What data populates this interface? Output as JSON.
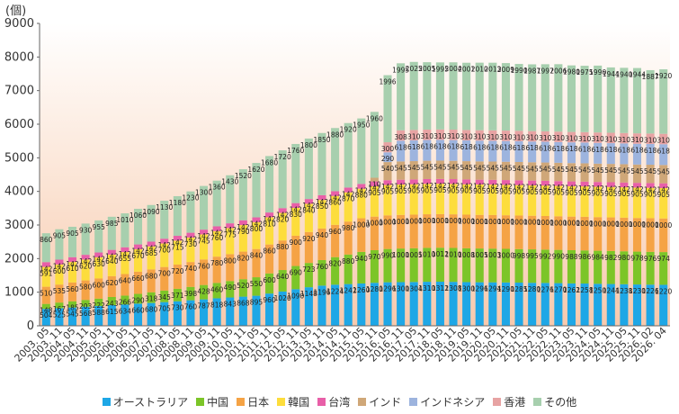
{
  "chart_data": {
    "type": "bar",
    "stacked": true,
    "ylabel": "(個)",
    "ylim": [
      0,
      9000
    ],
    "yticks": [
      0,
      1000,
      2000,
      3000,
      4000,
      5000,
      6000,
      7000,
      8000,
      9000
    ],
    "grid": false,
    "legend_position": "bottom",
    "categories": [
      "2003.05",
      "2003.11",
      "2004.05",
      "2004.11",
      "2005.05",
      "2005.11",
      "2006.05",
      "2006.11",
      "2007.05",
      "2007.11",
      "2008.05",
      "2008.11",
      "2009.05",
      "2009.11",
      "2010.05",
      "2010.11",
      "2011.05",
      "2011.11",
      "2012.05",
      "2012.11",
      "2013.05",
      "2013.11",
      "2014.05",
      "2014.11",
      "2015.05",
      "2015.11",
      "2016.05",
      "2016.11",
      "2017.05",
      "2017.11",
      "2018.05",
      "2018.11",
      "2019.05",
      "2019.11",
      "2020.05",
      "2020.11",
      "2021.05",
      "2021.11",
      "2022.05",
      "2022.11",
      "2023.05",
      "2023.11",
      "2024.05",
      "2024.11",
      "2025.05",
      "2025.11",
      "2026.02",
      "2026.04"
    ],
    "x_tick_labels": [
      "2003. 05",
      "2003. 11",
      "2004. 05",
      "2004. 11",
      "2005. 05",
      "2005. 11",
      "2006. 05",
      "2006. 11",
      "2007. 05",
      "2007. 11",
      "2008. 05",
      "2008. 11",
      "2009. 05",
      "2009. 11",
      "2010. 05",
      "2010. 11",
      "2011. 05",
      "2011. 11",
      "2012. 05",
      "2012. 11",
      "2013. 05",
      "2013. 11",
      "2014. 05",
      "2014. 11",
      "2015. 05",
      "2015. 11",
      "2016. 05",
      "2016. 11",
      "2017. 05",
      "2017. 11",
      "2018. 05",
      "2018. 11",
      "2019. 05",
      "2019. 11",
      "2020. 05",
      "2020. 11",
      "2021. 05",
      "2021. 11",
      "2022. 05",
      "2022. 11",
      "2023. 05",
      "2023. 11",
      "2024. 05",
      "2024. 11",
      "2025. 05",
      "2025. 11",
      "2026. 02",
      "2026. 04"
    ],
    "series": [
      {
        "name": "オーストラリア",
        "color": "#1ea7e6",
        "values": [
          504,
          525,
          545,
          568,
          588,
          615,
          634,
          660,
          680,
          705,
          730,
          760,
          787,
          818,
          843,
          868,
          895,
          960,
          1020,
          1090,
          1148,
          1196,
          1224,
          1242,
          1260,
          1280,
          1296,
          1300,
          1304,
          1310,
          1312,
          1308,
          1300,
          1296,
          1294,
          1290,
          1285,
          1280,
          1276,
          1270,
          1262,
          1258,
          1250,
          1244,
          1238,
          1230,
          1226,
          1220
        ]
      },
      {
        "name": "中国",
        "color": "#7cc528",
        "values": [
          148,
          167,
          185,
          203,
          222,
          243,
          266,
          290,
          318,
          345,
          371,
          398,
          428,
          460,
          490,
          520,
          550,
          600,
          640,
          690,
          723,
          760,
          820,
          880,
          940,
          970,
          990,
          1000,
          1005,
          1010,
          1012,
          1010,
          1008,
          1005,
          1003,
          1000,
          998,
          995,
          992,
          990,
          988,
          986,
          984,
          982,
          980,
          978,
          976,
          974
        ]
      },
      {
        "name": "日本",
        "color": "#f5a345",
        "values": [
          510,
          535,
          560,
          580,
          600,
          620,
          640,
          660,
          680,
          700,
          720,
          740,
          760,
          780,
          800,
          820,
          840,
          860,
          880,
          900,
          920,
          940,
          960,
          980,
          1000,
          1000,
          1000,
          1000,
          1000,
          1000,
          1000,
          1000,
          1000,
          1000,
          1000,
          1000,
          1000,
          1000,
          1000,
          1000,
          1000,
          1000,
          1000,
          1000,
          1000,
          1000,
          1000,
          1000
        ]
      },
      {
        "name": "韓国",
        "color": "#fddd3c",
        "values": [
          591,
          600,
          610,
          620,
          630,
          640,
          655,
          670,
          685,
          700,
          715,
          730,
          745,
          760,
          775,
          790,
          800,
          810,
          820,
          830,
          840,
          850,
          860,
          870,
          880,
          905,
          905,
          905,
          905,
          905,
          905,
          905,
          905,
          905,
          905,
          905,
          905,
          905,
          905,
          905,
          905,
          905,
          905,
          905,
          905,
          905,
          905,
          905
        ]
      },
      {
        "name": "台湾",
        "color": "#e85fa8",
        "values": [
          142,
          142,
          142,
          142,
          142,
          142,
          142,
          142,
          142,
          142,
          142,
          142,
          142,
          142,
          142,
          142,
          142,
          142,
          142,
          142,
          142,
          142,
          142,
          142,
          142,
          142,
          142,
          142,
          142,
          142,
          142,
          142,
          142,
          142,
          142,
          142,
          142,
          142,
          142,
          142,
          142,
          142,
          142,
          142,
          142,
          142,
          142,
          142
        ]
      },
      {
        "name": "インド",
        "color": "#cfa778",
        "values": [
          0,
          0,
          0,
          0,
          0,
          0,
          0,
          0,
          0,
          0,
          0,
          0,
          0,
          0,
          0,
          0,
          0,
          0,
          0,
          0,
          0,
          0,
          0,
          0,
          0,
          110,
          540,
          545,
          545,
          545,
          545,
          545,
          545,
          545,
          545,
          545,
          545,
          545,
          545,
          545,
          545,
          545,
          545,
          545,
          545,
          545,
          545,
          545
        ]
      },
      {
        "name": "インドネシア",
        "color": "#9db4de",
        "values": [
          0,
          0,
          0,
          0,
          0,
          0,
          0,
          0,
          0,
          0,
          0,
          0,
          0,
          0,
          0,
          0,
          0,
          0,
          0,
          0,
          0,
          0,
          0,
          0,
          0,
          0,
          290,
          618,
          618,
          618,
          618,
          618,
          618,
          618,
          618,
          618,
          618,
          618,
          618,
          618,
          618,
          618,
          618,
          618,
          618,
          618,
          618,
          618
        ]
      },
      {
        "name": "香港",
        "color": "#e7a3a3",
        "values": [
          0,
          0,
          0,
          0,
          0,
          0,
          0,
          0,
          0,
          0,
          0,
          0,
          0,
          0,
          0,
          0,
          0,
          0,
          0,
          0,
          0,
          0,
          0,
          0,
          0,
          0,
          300,
          308,
          310,
          310,
          310,
          310,
          310,
          310,
          310,
          310,
          310,
          310,
          310,
          310,
          310,
          310,
          310,
          310,
          310,
          310,
          310,
          310
        ]
      },
      {
        "name": "その他",
        "color": "#a7cfae",
        "values": [
          860,
          905,
          905,
          930,
          955,
          985,
          1010,
          1060,
          1090,
          1130,
          1180,
          1230,
          1300,
          1360,
          1430,
          1520,
          1620,
          1680,
          1720,
          1760,
          1800,
          1850,
          1880,
          1920,
          1950,
          1960,
          1996,
          1995,
          2025,
          2005,
          1995,
          2004,
          2001,
          2010,
          2013,
          2009,
          1990,
          1987,
          1997,
          2006,
          1980,
          1975,
          1990,
          1944,
          1940,
          1944,
          1887,
          1920
        ]
      }
    ],
    "data_labels": {
      "オーストラリア": [
        "504",
        "525",
        "545",
        "568",
        "588",
        "615",
        "634",
        "660",
        "680",
        "705",
        "730",
        "760",
        "787",
        "818",
        "843",
        "868",
        "895",
        "960",
        "1020",
        "1090",
        "1148",
        "1196",
        "1224",
        "1242",
        "1260",
        "1280",
        "1296",
        "1300",
        "1304",
        "1310",
        "1312",
        "1308",
        "1300",
        "1296",
        "1294",
        "1290",
        "1285",
        "1280",
        "1276",
        "1270",
        "1262",
        "1258",
        "1250",
        "1244",
        "1238",
        "1230",
        "1226",
        "1220"
      ],
      "中国": [
        "148",
        "167",
        "185",
        "203",
        "222",
        "243",
        "266",
        "290",
        "318",
        "345",
        "371",
        "398",
        "428",
        "460",
        "490",
        "520",
        "550",
        "600",
        "640",
        "690",
        "723",
        "760",
        "820",
        "880",
        "940",
        "970",
        "990",
        "1000",
        "1005",
        "1010",
        "1012",
        "1010",
        "1008",
        "1005",
        "1003",
        "1000",
        "998",
        "995",
        "992",
        "990",
        "988",
        "986",
        "984",
        "982",
        "980",
        "978",
        "976",
        "974"
      ],
      "日本": [
        "510",
        "535",
        "560",
        "580",
        "600",
        "620",
        "640",
        "660",
        "680",
        "700",
        "720",
        "740",
        "760",
        "780",
        "800",
        "820",
        "840",
        "860",
        "880",
        "900",
        "920",
        "940",
        "960",
        "980",
        "1000",
        "1000",
        "1000",
        "1000",
        "1000",
        "1000",
        "1000",
        "1000",
        "1000",
        "1000",
        "1000",
        "1000",
        "1000",
        "1000",
        "1000",
        "1000",
        "1000",
        "1000",
        "1000",
        "1000",
        "1000",
        "1000",
        "1000",
        "1000"
      ],
      "韓国": [
        "591",
        "600",
        "610",
        "620",
        "630",
        "640",
        "655",
        "670",
        "685",
        "700",
        "715",
        "730",
        "745",
        "760",
        "775",
        "790",
        "800",
        "810",
        "820",
        "830",
        "840",
        "850",
        "860",
        "870",
        "880",
        "905",
        "905",
        "905",
        "905",
        "905",
        "905",
        "905",
        "905",
        "905",
        "905",
        "905",
        "905",
        "905",
        "905",
        "905",
        "905",
        "905",
        "905",
        "905",
        "905",
        "905",
        "905",
        "905"
      ],
      "台湾": [
        "142",
        "142",
        "142",
        "142",
        "142",
        "142",
        "142",
        "142",
        "142",
        "142",
        "142",
        "142",
        "142",
        "142",
        "142",
        "142",
        "142",
        "142",
        "142",
        "142",
        "142",
        "142",
        "142",
        "142",
        "142",
        "142",
        "142",
        "142",
        "142",
        "142",
        "142",
        "142",
        "142",
        "142",
        "142",
        "142",
        "142",
        "142",
        "142",
        "142",
        "142",
        "142",
        "142",
        "142",
        "142",
        "142",
        "142",
        "142"
      ],
      "インド": [
        "",
        "",
        "",
        "",
        "",
        "",
        "",
        "",
        "",
        "",
        "",
        "",
        "",
        "",
        "",
        "",
        "",
        "",
        "",
        "",
        "",
        "",
        "",
        "",
        "",
        "110",
        "540",
        "545",
        "545",
        "545",
        "545",
        "545",
        "545",
        "545",
        "545",
        "545",
        "545",
        "545",
        "545",
        "545",
        "545",
        "545",
        "545",
        "545",
        "545",
        "545",
        "545",
        "545"
      ],
      "インドネシア": [
        "",
        "",
        "",
        "",
        "",
        "",
        "",
        "",
        "",
        "",
        "",
        "",
        "",
        "",
        "",
        "",
        "",
        "",
        "",
        "",
        "",
        "",
        "",
        "",
        "",
        "",
        "290",
        "618",
        "618",
        "618",
        "618",
        "618",
        "618",
        "618",
        "618",
        "618",
        "618",
        "618",
        "618",
        "618",
        "618",
        "618",
        "618",
        "618",
        "618",
        "618",
        "618",
        "618"
      ],
      "香港": [
        "",
        "",
        "",
        "",
        "",
        "",
        "",
        "",
        "",
        "",
        "",
        "",
        "",
        "",
        "",
        "",
        "",
        "",
        "",
        "",
        "",
        "",
        "",
        "",
        "",
        "",
        "300",
        "308",
        "310",
        "310",
        "310",
        "310",
        "310",
        "310",
        "310",
        "310",
        "310",
        "310",
        "310",
        "310",
        "310",
        "310",
        "310",
        "310",
        "310",
        "310",
        "310",
        "310"
      ],
      "その他": [
        "860",
        "905",
        "905",
        "930",
        "955",
        "985",
        "1010",
        "1060",
        "1090",
        "1130",
        "1180",
        "1230",
        "1300",
        "1360",
        "1430",
        "1520",
        "1620",
        "1680",
        "1720",
        "1760",
        "1800",
        "1850",
        "1880",
        "1920",
        "1950",
        "1960",
        "1996",
        "1995",
        "2025",
        "2005",
        "1995",
        "2004",
        "2001",
        "2010",
        "2013",
        "2009",
        "1990",
        "1987",
        "1997",
        "2006",
        "1980",
        "1975",
        "1990",
        "1944",
        "1940",
        "1944",
        "1887",
        "1920"
      ]
    }
  }
}
